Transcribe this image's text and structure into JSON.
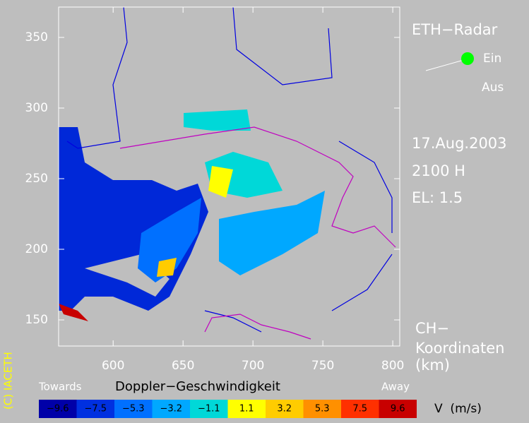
{
  "map": {
    "xlim": [
      561,
      805
    ],
    "ylim": [
      131.5,
      371.5
    ],
    "xticks": [
      600,
      650,
      700,
      750,
      800
    ],
    "yticks": [
      150,
      200,
      250,
      300,
      350
    ],
    "title": "ETH−Radar",
    "status_on": "Ein",
    "status_off": "Aus",
    "date": "17.Aug.2003",
    "time": "2100 H",
    "elevation": "EL: 1.5",
    "coords_label": [
      "CH−",
      "Koordinaten",
      "(km)"
    ],
    "copyright": "(C) IACETH",
    "colorbar": {
      "title": "Doppler−Geschwindigkeit",
      "left_label": "Towards",
      "right_label": "Away",
      "unit_label": "V  (m/s)",
      "entries": [
        {
          "label": "−9.6",
          "color": "#0000a8"
        },
        {
          "label": "−7.5",
          "color": "#0030e0"
        },
        {
          "label": "−5.3",
          "color": "#0070ff"
        },
        {
          "label": "−3.2",
          "color": "#00a8ff"
        },
        {
          "label": "−1.1",
          "color": "#00d8d8"
        },
        {
          "label": "1.1",
          "color": "#ffff00"
        },
        {
          "label": "3.2",
          "color": "#ffcc00"
        },
        {
          "label": "5.3",
          "color": "#ff9000"
        },
        {
          "label": "7.5",
          "color": "#ff3000"
        },
        {
          "label": "9.6",
          "color": "#c80000"
        }
      ]
    }
  }
}
